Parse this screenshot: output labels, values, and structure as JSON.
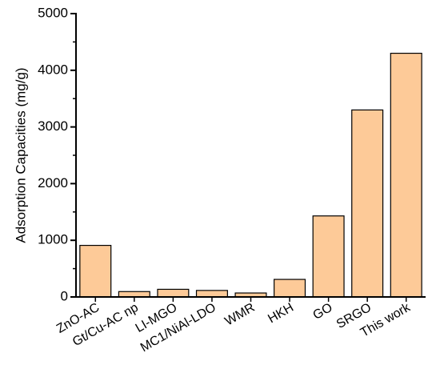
{
  "chart_data": {
    "type": "bar",
    "title": "",
    "xlabel": "",
    "ylabel": "Adsorption Capacities (mg/g)",
    "ylim": [
      0,
      5000
    ],
    "yticks": [
      0,
      1000,
      2000,
      3000,
      4000,
      5000
    ],
    "categories": [
      "ZnO-AC",
      "Gt/Cu-AC np",
      "LI-MGO",
      "MC1/NiAl-LDO",
      "WMR",
      "HKH",
      "GO",
      "SRGO",
      "This work"
    ],
    "values": [
      910,
      95,
      135,
      115,
      70,
      310,
      1430,
      3300,
      4300
    ],
    "grid": false,
    "legend": "none",
    "colors": {
      "bar_fill": "#FDCA98",
      "bar_stroke": "#000000"
    }
  }
}
